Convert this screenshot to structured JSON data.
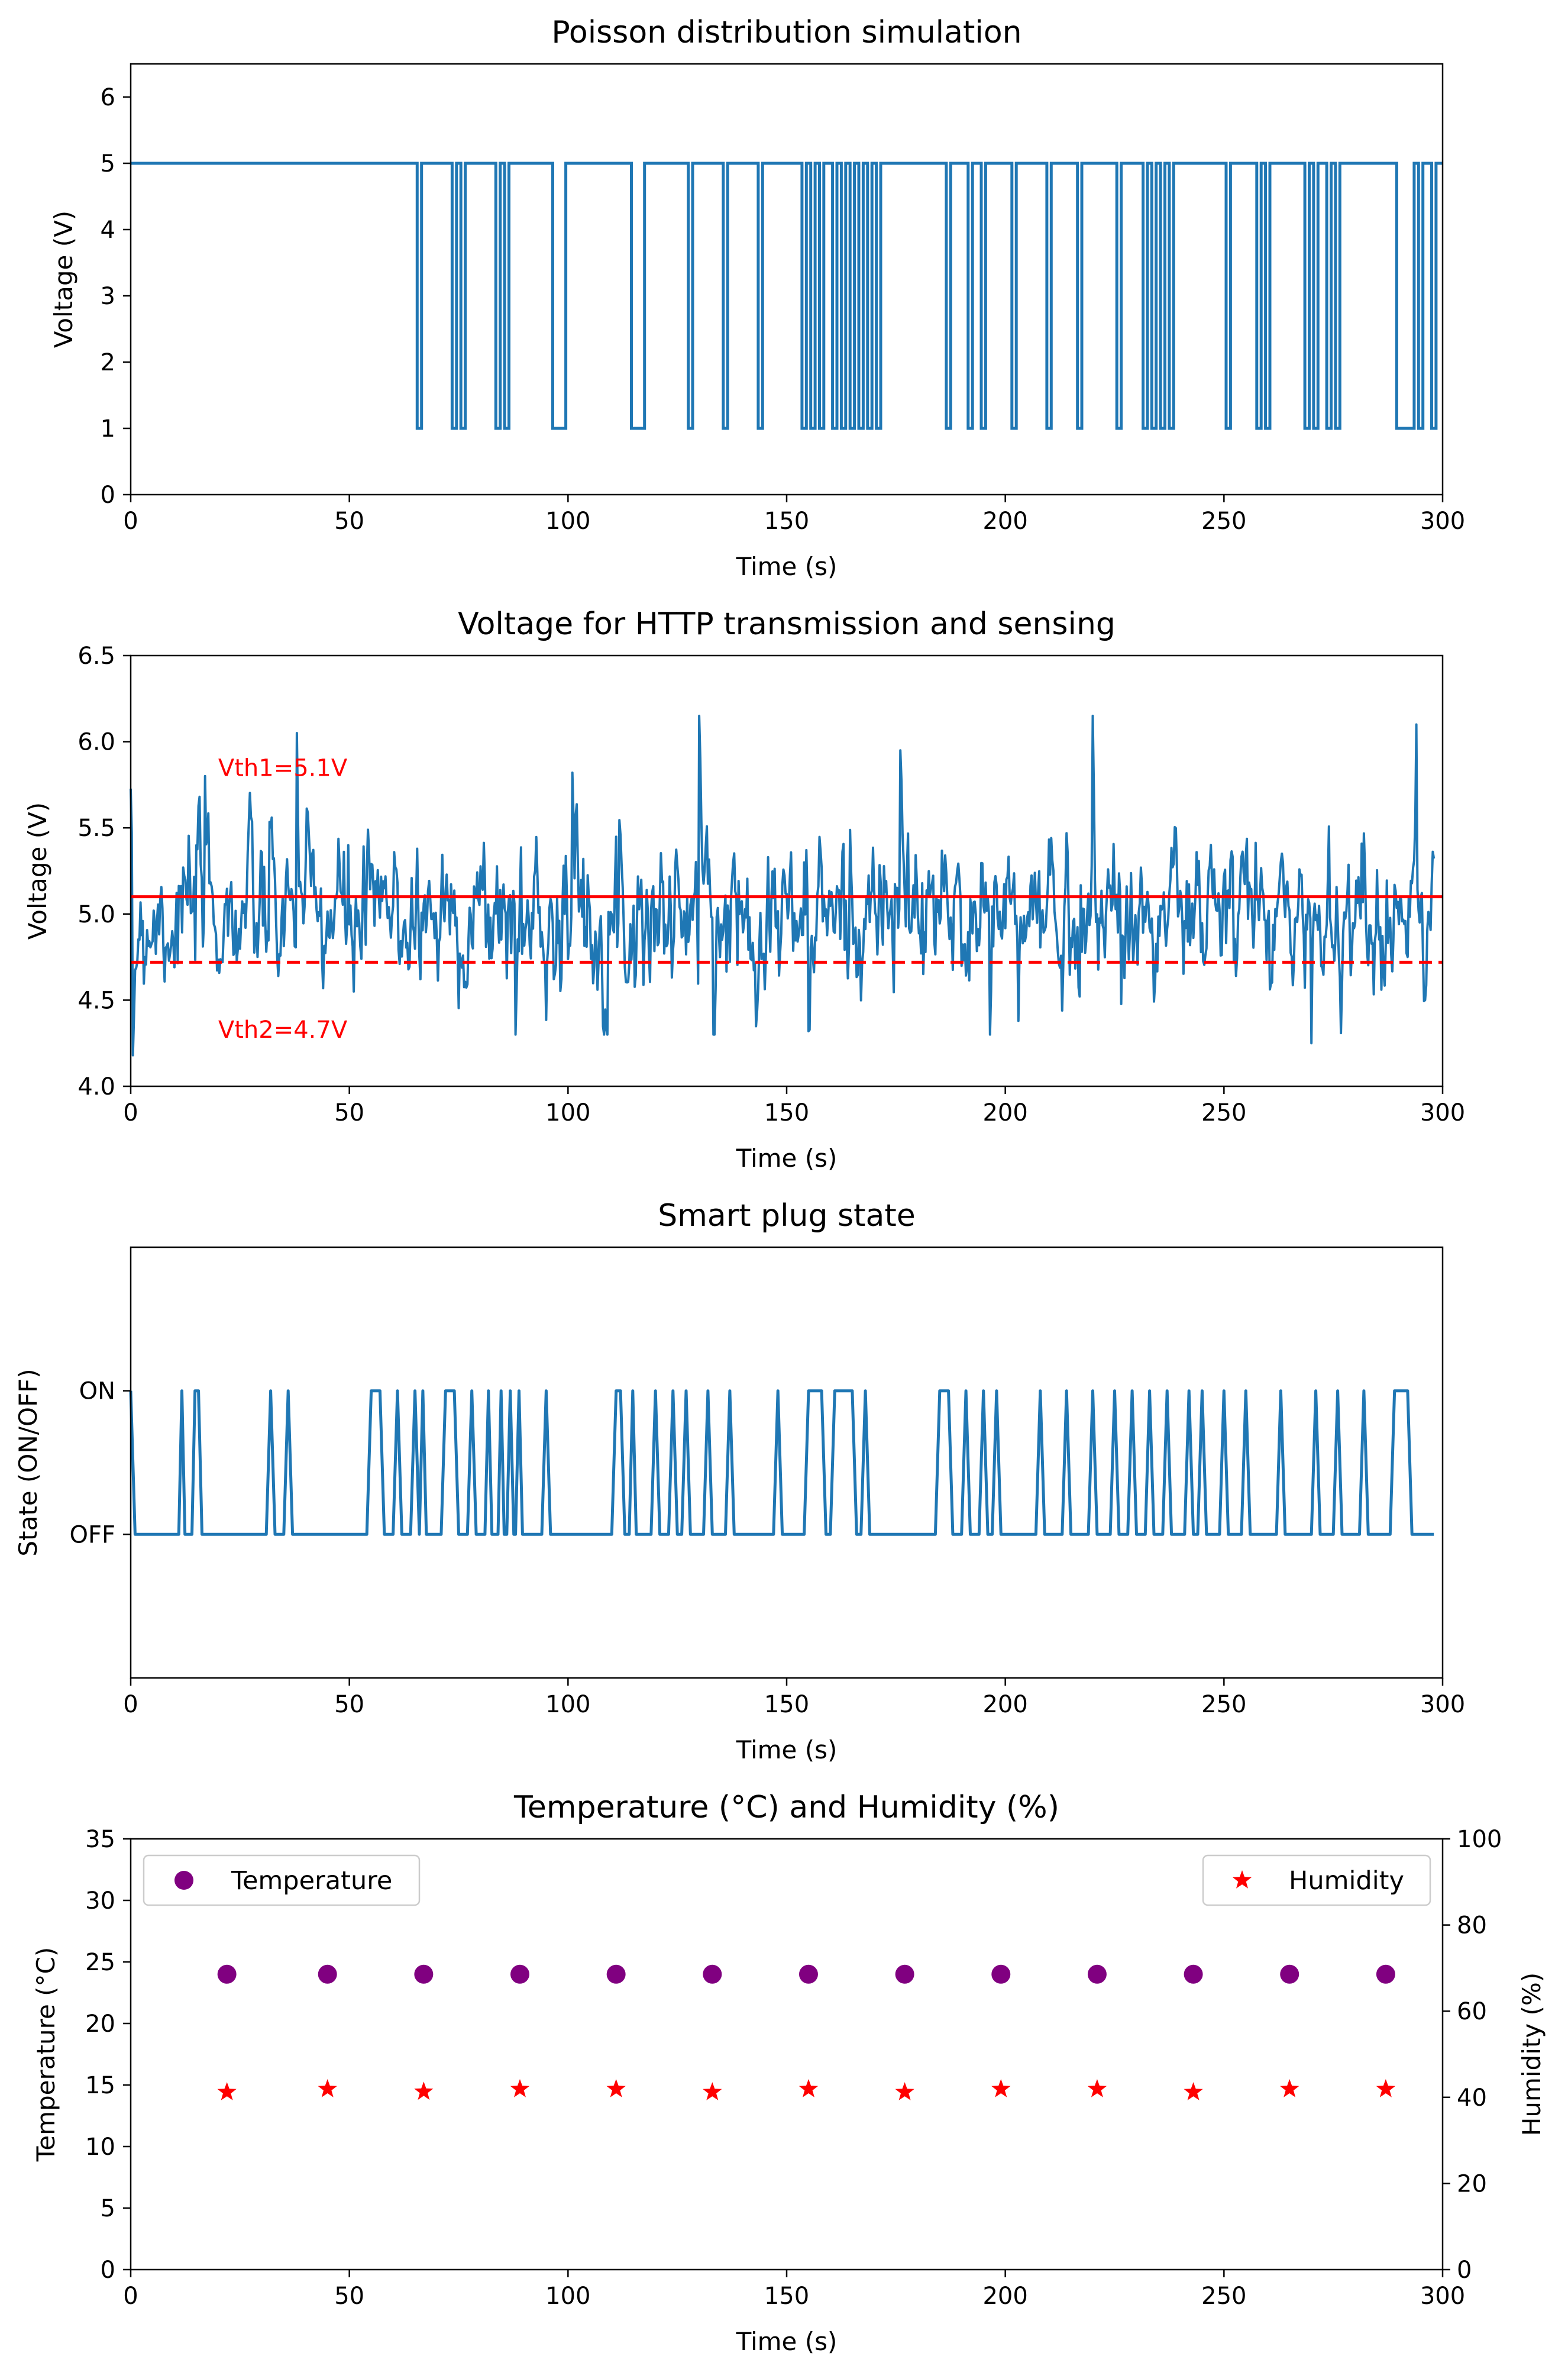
{
  "chart_data": [
    {
      "type": "line",
      "title": "Poisson distribution simulation",
      "xlabel": "Time (s)",
      "ylabel": "Voltage (V)",
      "xlim": [
        0,
        300
      ],
      "ylim": [
        0,
        6.5
      ],
      "xticks": [
        0,
        50,
        100,
        150,
        200,
        250,
        300
      ],
      "yticks": [
        0,
        1,
        2,
        3,
        4,
        5,
        6
      ],
      "grid": false,
      "color": "#1f77b4",
      "series": [
        {
          "name": "Voltage",
          "drawstyle": "steps",
          "high": 5,
          "low": 1,
          "low_intervals": [
            [
              65.5,
              66.5
            ],
            [
              73.5,
              74.5
            ],
            [
              75.5,
              76.5
            ],
            [
              83.5,
              84.5
            ],
            [
              85.5,
              86.5
            ],
            [
              96.5,
              99.5
            ],
            [
              114.5,
              117.5
            ],
            [
              127.5,
              128.5
            ],
            [
              135.5,
              136.5
            ],
            [
              143.5,
              144.5
            ],
            [
              153.5,
              154.5
            ],
            [
              155.5,
              156.5
            ],
            [
              157.5,
              158.5
            ],
            [
              160.5,
              161.5
            ],
            [
              162.5,
              163.5
            ],
            [
              164.5,
              165.5
            ],
            [
              166.5,
              167.5
            ],
            [
              168.5,
              169.5
            ],
            [
              170.5,
              171.5
            ],
            [
              186.5,
              187.5
            ],
            [
              191.5,
              192.5
            ],
            [
              194.5,
              195.5
            ],
            [
              201.5,
              202.5
            ],
            [
              209.5,
              210.5
            ],
            [
              216.5,
              217.5
            ],
            [
              225.5,
              226.5
            ],
            [
              231.5,
              232.5
            ],
            [
              233.5,
              234.5
            ],
            [
              235.5,
              236.5
            ],
            [
              237.5,
              238.5
            ],
            [
              250.5,
              251.5
            ],
            [
              257.5,
              258.5
            ],
            [
              259.5,
              260.5
            ],
            [
              268.5,
              269.5
            ],
            [
              270.5,
              271.5
            ],
            [
              273.5,
              274.5
            ],
            [
              275.5,
              276.5
            ],
            [
              289.5,
              293.5
            ],
            [
              294.5,
              295.5
            ],
            [
              297.5,
              298.5
            ]
          ]
        }
      ]
    },
    {
      "type": "line",
      "title": "Voltage for HTTP transmission and sensing",
      "xlabel": "Time (s)",
      "ylabel": "Voltage (V)",
      "xlim": [
        0,
        300
      ],
      "ylim": [
        4.0,
        6.5
      ],
      "xticks": [
        0,
        50,
        100,
        150,
        200,
        250,
        300
      ],
      "yticks": [
        4.0,
        4.5,
        5.0,
        5.5,
        6.0,
        6.5
      ],
      "ytick_labels": [
        "4.0",
        "4.5",
        "5.0",
        "5.5",
        "6.0",
        "6.5"
      ],
      "grid": false,
      "color": "#1f77b4",
      "series": [
        {
          "name": "Voltage",
          "sample_step": 0.25,
          "noise_std": 0.22,
          "seed": 7,
          "spikes": [
            [
              0.5,
              4.18
            ],
            [
              17,
              5.8
            ],
            [
              38,
              6.05
            ],
            [
              51,
              4.55
            ],
            [
              88,
              4.3
            ],
            [
              101,
              5.82
            ],
            [
              130,
              6.15
            ],
            [
              155,
              4.32
            ],
            [
              176,
              5.95
            ],
            [
              203,
              4.38
            ],
            [
              220,
              6.15
            ],
            [
              270,
              4.25
            ],
            [
              294,
              6.1
            ],
            [
              296,
              4.5
            ]
          ]
        }
      ],
      "thresholds": [
        {
          "label": "Vth1=5.1V",
          "value": 5.1,
          "style": "solid",
          "color": "#ff0000",
          "label_x": 20,
          "label_y": 5.85
        },
        {
          "label": "Vth2=4.7V",
          "value": 4.72,
          "style": "dashed",
          "color": "#ff0000",
          "label_x": 20,
          "label_y": 4.33
        }
      ]
    },
    {
      "type": "line",
      "title": "Smart plug state",
      "xlabel": "Time (s)",
      "ylabel": "State (ON/OFF)",
      "xlim": [
        0,
        300
      ],
      "ylim": [
        -1,
        2
      ],
      "xticks": [
        0,
        50,
        100,
        150,
        200,
        250,
        300
      ],
      "yticks": [
        0,
        1
      ],
      "ytick_labels": [
        "OFF",
        "ON"
      ],
      "grid": false,
      "color": "#1f77b4",
      "series": [
        {
          "name": "State",
          "points": [
            [
              0,
              1
            ],
            [
              1,
              0
            ],
            [
              11,
              0
            ],
            [
              11.7,
              1
            ],
            [
              12.4,
              0
            ],
            [
              14,
              0
            ],
            [
              14.7,
              1
            ],
            [
              15.5,
              1
            ],
            [
              16.3,
              0
            ],
            [
              31,
              0
            ],
            [
              32,
              1
            ],
            [
              33,
              0
            ],
            [
              35,
              0
            ],
            [
              36,
              1
            ],
            [
              37,
              0
            ],
            [
              54,
              0
            ],
            [
              55,
              1
            ],
            [
              57,
              1
            ],
            [
              58,
              0
            ],
            [
              60,
              0
            ],
            [
              61,
              1
            ],
            [
              62,
              0
            ],
            [
              64,
              0
            ],
            [
              65,
              1
            ],
            [
              66,
              0
            ],
            [
              66.8,
              1
            ],
            [
              67.6,
              0
            ],
            [
              71,
              0
            ],
            [
              72,
              1
            ],
            [
              74,
              1
            ],
            [
              75,
              0
            ],
            [
              77,
              0
            ],
            [
              78,
              1
            ],
            [
              79,
              0
            ],
            [
              81,
              0
            ],
            [
              81.8,
              1
            ],
            [
              82.6,
              0
            ],
            [
              84,
              0
            ],
            [
              84.7,
              1
            ],
            [
              85.4,
              0
            ],
            [
              86,
              0
            ],
            [
              86.8,
              1
            ],
            [
              87.6,
              0
            ],
            [
              88,
              0
            ],
            [
              88.8,
              1
            ],
            [
              89.6,
              0
            ],
            [
              94,
              0
            ],
            [
              95,
              1
            ],
            [
              96,
              0
            ],
            [
              110,
              0
            ],
            [
              111,
              1
            ],
            [
              112,
              1
            ],
            [
              113,
              0
            ],
            [
              114,
              0
            ],
            [
              114.8,
              1
            ],
            [
              115.6,
              0
            ],
            [
              119,
              0
            ],
            [
              120,
              1
            ],
            [
              121,
              0
            ],
            [
              123,
              0
            ],
            [
              124,
              1
            ],
            [
              125,
              0
            ],
            [
              126,
              0
            ],
            [
              127,
              1
            ],
            [
              128,
              0
            ],
            [
              131,
              0
            ],
            [
              132,
              1
            ],
            [
              133,
              0
            ],
            [
              136,
              0
            ],
            [
              137,
              1
            ],
            [
              138,
              0
            ],
            [
              147,
              0
            ],
            [
              148,
              1
            ],
            [
              149,
              0
            ],
            [
              154,
              0
            ],
            [
              155,
              1
            ],
            [
              158,
              1
            ],
            [
              159,
              0
            ],
            [
              160,
              0
            ],
            [
              161,
              1
            ],
            [
              165,
              1
            ],
            [
              166,
              0
            ],
            [
              167,
              0
            ],
            [
              168,
              1
            ],
            [
              169,
              0
            ],
            [
              184,
              0
            ],
            [
              185,
              1
            ],
            [
              187,
              1
            ],
            [
              188,
              0
            ],
            [
              190,
              0
            ],
            [
              191,
              1
            ],
            [
              192,
              0
            ],
            [
              194,
              0
            ],
            [
              195,
              1
            ],
            [
              196,
              0
            ],
            [
              197,
              0
            ],
            [
              198,
              1
            ],
            [
              199,
              0
            ],
            [
              207,
              0
            ],
            [
              208,
              1
            ],
            [
              209,
              0
            ],
            [
              213,
              0
            ],
            [
              214,
              1
            ],
            [
              215,
              0
            ],
            [
              219,
              0
            ],
            [
              220,
              1
            ],
            [
              221,
              0
            ],
            [
              224,
              0
            ],
            [
              225,
              1
            ],
            [
              226,
              0
            ],
            [
              228,
              0
            ],
            [
              229,
              1
            ],
            [
              230,
              0
            ],
            [
              232,
              0
            ],
            [
              233,
              1
            ],
            [
              234,
              0
            ],
            [
              236,
              0
            ],
            [
              237,
              1
            ],
            [
              238,
              0
            ],
            [
              241,
              0
            ],
            [
              242,
              1
            ],
            [
              243,
              0
            ],
            [
              244,
              0
            ],
            [
              245,
              1
            ],
            [
              246,
              0
            ],
            [
              249,
              0
            ],
            [
              250,
              1
            ],
            [
              251,
              0
            ],
            [
              254,
              0
            ],
            [
              255,
              1
            ],
            [
              256,
              0
            ],
            [
              262,
              0
            ],
            [
              263,
              1
            ],
            [
              264,
              0
            ],
            [
              270,
              0
            ],
            [
              271,
              1
            ],
            [
              272,
              0
            ],
            [
              275,
              0
            ],
            [
              276,
              1
            ],
            [
              277,
              0
            ],
            [
              281,
              0
            ],
            [
              282,
              1
            ],
            [
              283,
              0
            ],
            [
              288,
              0
            ],
            [
              289,
              1
            ],
            [
              292,
              1
            ],
            [
              293,
              0
            ],
            [
              298,
              0
            ]
          ]
        }
      ]
    },
    {
      "type": "scatter",
      "title": "Temperature (°C) and Humidity (%)",
      "xlabel": "Time (s)",
      "ylabel": "Temperature (°C)",
      "ylabel_right": "Humidity (%)",
      "xlim": [
        0,
        300
      ],
      "ylim": [
        0,
        35
      ],
      "ylim_right": [
        0,
        100
      ],
      "xticks": [
        0,
        50,
        100,
        150,
        200,
        250,
        300
      ],
      "yticks": [
        0,
        5,
        10,
        15,
        20,
        25,
        30,
        35
      ],
      "yticks_right": [
        0,
        20,
        40,
        60,
        80,
        100
      ],
      "grid": false,
      "series": [
        {
          "name": "Temperature",
          "axis": "left",
          "marker": "circle",
          "color": "#800080",
          "legend": "top-left",
          "x": [
            22,
            45,
            67,
            89,
            111,
            133,
            155,
            177,
            199,
            221,
            243,
            265,
            287
          ],
          "y": [
            24,
            24,
            24,
            24,
            24,
            24,
            24,
            24,
            24,
            24,
            24,
            24,
            24
          ]
        },
        {
          "name": "Humidity",
          "axis": "right",
          "marker": "star",
          "color": "#ff0000",
          "legend": "top-right",
          "x": [
            22,
            45,
            67,
            89,
            111,
            133,
            155,
            177,
            199,
            221,
            243,
            265,
            287
          ],
          "y": [
            41.2,
            41.9,
            41.3,
            41.9,
            41.9,
            41.2,
            41.9,
            41.2,
            41.9,
            41.9,
            41.2,
            41.9,
            41.9
          ]
        }
      ]
    }
  ]
}
